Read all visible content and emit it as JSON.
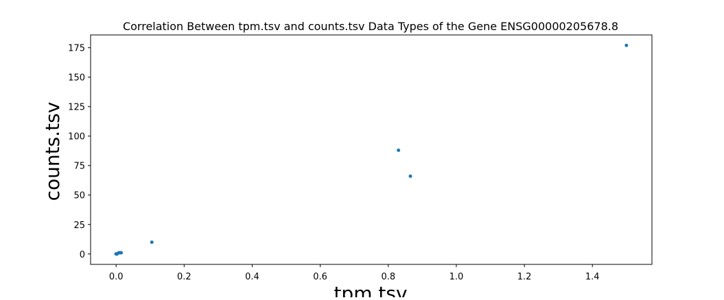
{
  "chart_data": {
    "type": "scatter",
    "title": "Correlation Between tpm.tsv and counts.tsv Data Types of the Gene ENSG00000205678.8",
    "xlabel": "tpm.tsv",
    "ylabel": "counts.tsv",
    "xlim": [
      -0.075,
      1.575
    ],
    "ylim": [
      -8.85,
      185.85
    ],
    "x_ticks": [
      0.0,
      0.2,
      0.4,
      0.6,
      0.8,
      1.0,
      1.2,
      1.4
    ],
    "x_tick_labels": [
      "0.0",
      "0.2",
      "0.4",
      "0.6",
      "0.8",
      "1.0",
      "1.2",
      "1.4"
    ],
    "y_ticks": [
      0,
      25,
      50,
      75,
      100,
      125,
      150,
      175
    ],
    "y_tick_labels": [
      "0",
      "25",
      "50",
      "75",
      "100",
      "125",
      "150",
      "175"
    ],
    "grid": false,
    "legend": "none",
    "marker_color": "#1f77b4",
    "points": [
      {
        "x": 0.0,
        "y": 0
      },
      {
        "x": 0.0,
        "y": 0
      },
      {
        "x": 0.002,
        "y": 0
      },
      {
        "x": 0.003,
        "y": 0
      },
      {
        "x": 0.008,
        "y": 1
      },
      {
        "x": 0.012,
        "y": 1
      },
      {
        "x": 0.015,
        "y": 1
      },
      {
        "x": 0.105,
        "y": 10
      },
      {
        "x": 0.83,
        "y": 88
      },
      {
        "x": 0.865,
        "y": 66
      },
      {
        "x": 1.5,
        "y": 177
      }
    ]
  }
}
